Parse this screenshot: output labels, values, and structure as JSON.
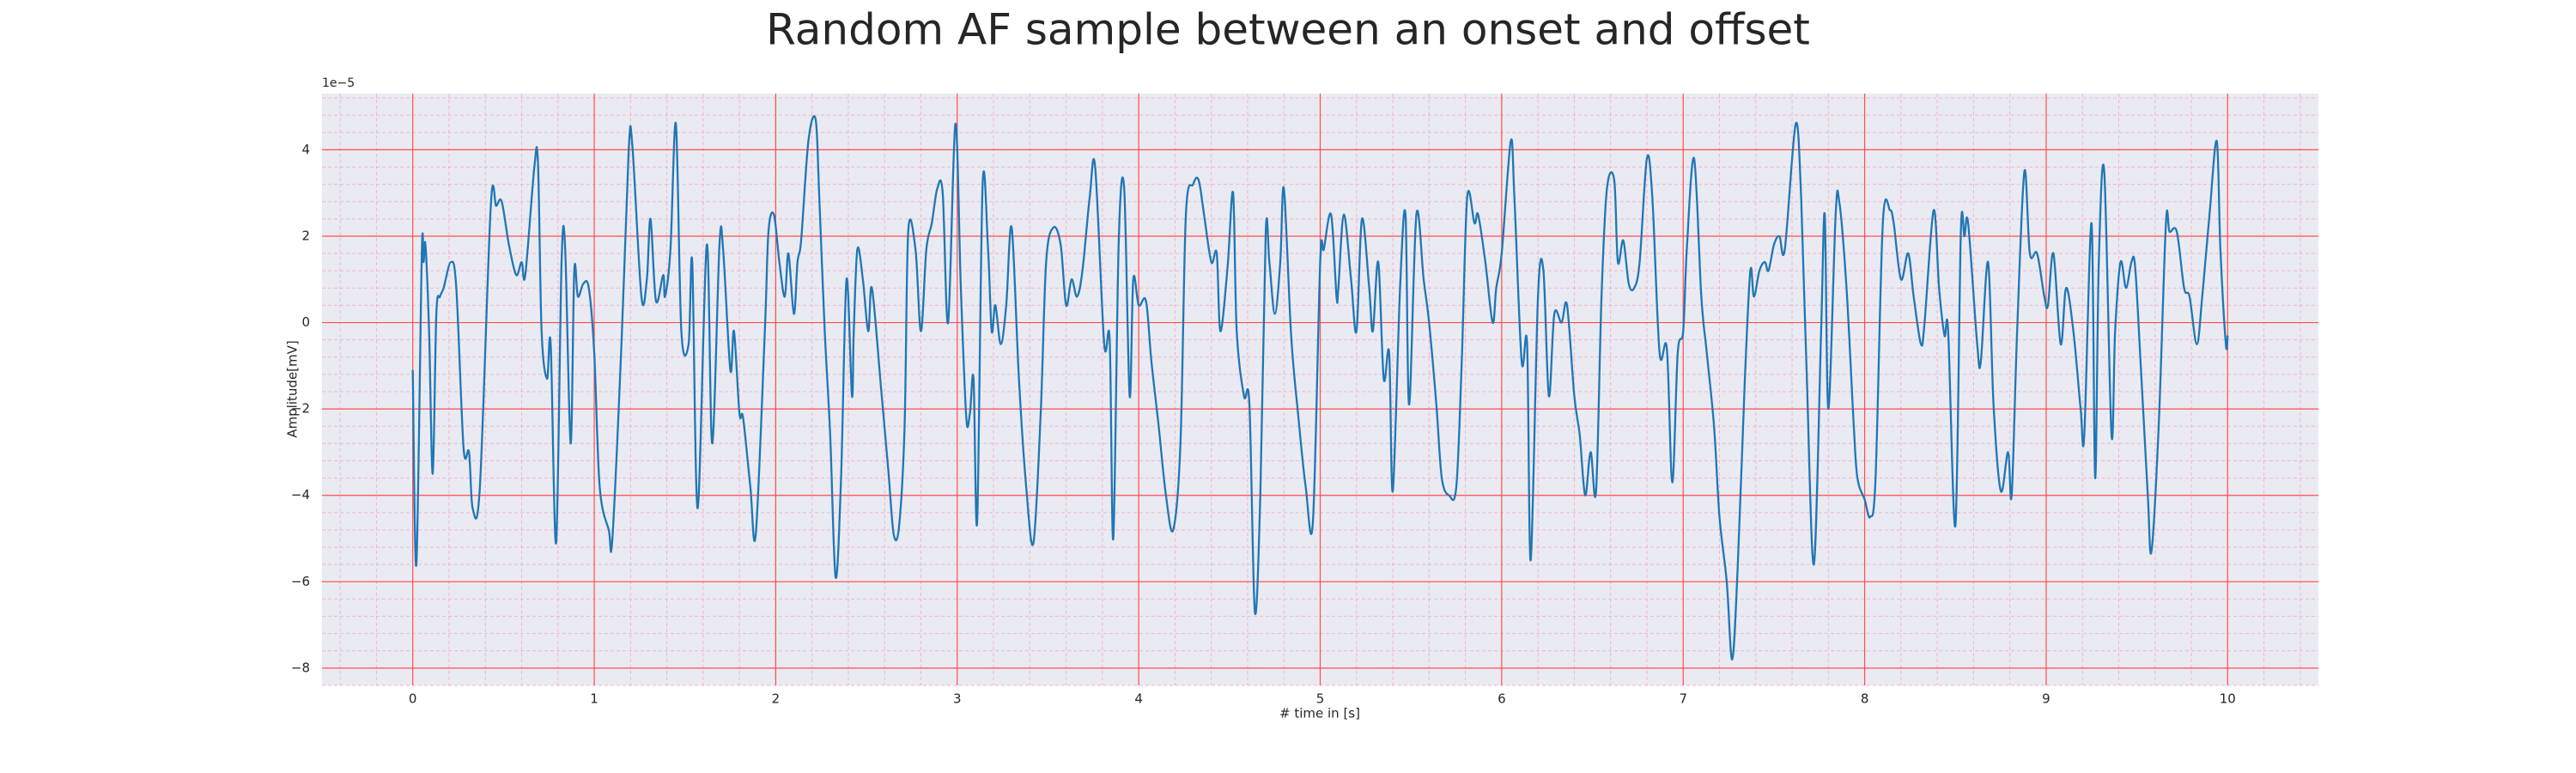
{
  "chart_data": {
    "type": "line",
    "title": "Random AF sample between an onset and offset",
    "xlabel": "# time in [s]",
    "ylabel": "Amplitude[mV]",
    "y_offset_label": "1e−5",
    "xlim": [
      -0.5,
      10.5
    ],
    "ylim": [
      -8.4,
      5.3
    ],
    "xticks": [
      0,
      1,
      2,
      3,
      4,
      5,
      6,
      7,
      8,
      9,
      10
    ],
    "yticks": [
      {
        "value": -8,
        "label": "−8"
      },
      {
        "value": -6,
        "label": "−6"
      },
      {
        "value": -4,
        "label": "−4"
      },
      {
        "value": -2,
        "label": "−2"
      },
      0,
      2,
      4
    ],
    "grid": true,
    "minor_grid": true,
    "grid_color": "#ff4d4d",
    "background": "#eaeaf2",
    "x": [
      0,
      0.02,
      0.05,
      0.06,
      0.07,
      0.09,
      0.11,
      0.13,
      0.15,
      0.17,
      0.21,
      0.24,
      0.28,
      0.31,
      0.33,
      0.37,
      0.43,
      0.46,
      0.49,
      0.53,
      0.57,
      0.6,
      0.62,
      0.67,
      0.69,
      0.71,
      0.74,
      0.76,
      0.79,
      0.82,
      0.84,
      0.87,
      0.89,
      0.91,
      0.94,
      0.97,
      1.0,
      1.03,
      1.08,
      1.1,
      1.15,
      1.19,
      1.21,
      1.26,
      1.29,
      1.31,
      1.34,
      1.38,
      1.39,
      1.42,
      1.45,
      1.48,
      1.52,
      1.54,
      1.57,
      1.62,
      1.65,
      1.69,
      1.71,
      1.75,
      1.77,
      1.8,
      1.82,
      1.86,
      1.89,
      1.94,
      1.96,
      1.99,
      2.02,
      2.05,
      2.07,
      2.1,
      2.12,
      2.14,
      2.18,
      2.22,
      2.24,
      2.27,
      2.3,
      2.33,
      2.36,
      2.39,
      2.42,
      2.43,
      2.45,
      2.48,
      2.51,
      2.53,
      2.58,
      2.62,
      2.65,
      2.68,
      2.71,
      2.73,
      2.77,
      2.8,
      2.83,
      2.86,
      2.89,
      2.92,
      2.95,
      2.99,
      3.02,
      3.05,
      3.07,
      3.09,
      3.11,
      3.14,
      3.17,
      3.19,
      3.21,
      3.24,
      3.27,
      3.3,
      3.34,
      3.38,
      3.42,
      3.46,
      3.49,
      3.53,
      3.57,
      3.6,
      3.63,
      3.66,
      3.69,
      3.73,
      3.76,
      3.81,
      3.84,
      3.86,
      3.89,
      3.92,
      3.95,
      3.97,
      4.0,
      4.04,
      4.07,
      4.11,
      4.15,
      4.19,
      4.23,
      4.26,
      4.3,
      4.33,
      4.36,
      4.4,
      4.43,
      4.45,
      4.49,
      4.52,
      4.54,
      4.58,
      4.61,
      4.64,
      4.67,
      4.7,
      4.72,
      4.75,
      4.78,
      4.8,
      4.84,
      4.88,
      4.92,
      4.96,
      5.0,
      5.02,
      5.06,
      5.09,
      5.1,
      5.13,
      5.17,
      5.2,
      5.23,
      5.27,
      5.29,
      5.32,
      5.35,
      5.38,
      5.4,
      5.44,
      5.47,
      5.49,
      5.53,
      5.57,
      5.6,
      5.64,
      5.67,
      5.71,
      5.75,
      5.78,
      5.81,
      5.85,
      5.87,
      5.91,
      5.95,
      5.97,
      6.0,
      6.05,
      6.07,
      6.11,
      6.14,
      6.16,
      6.2,
      6.23,
      6.26,
      6.29,
      6.33,
      6.36,
      6.4,
      6.43,
      6.46,
      6.49,
      6.52,
      6.55,
      6.58,
      6.62,
      6.64,
      6.67,
      6.7,
      6.73,
      6.76,
      6.8,
      6.83,
      6.87,
      6.91,
      6.94,
      6.97,
      7.0,
      7.02,
      7.06,
      7.1,
      7.13,
      7.17,
      7.2,
      7.24,
      7.27,
      7.3,
      7.34,
      7.37,
      7.39,
      7.42,
      7.45,
      7.47,
      7.5,
      7.53,
      7.56,
      7.62,
      7.65,
      7.68,
      7.72,
      7.76,
      7.78,
      7.8,
      7.84,
      7.86,
      7.9,
      7.94,
      7.96,
      8.0,
      8.03,
      8.06,
      8.1,
      8.14,
      8.16,
      8.2,
      8.24,
      8.27,
      8.31,
      8.33,
      8.38,
      8.41,
      8.44,
      8.46,
      8.5,
      8.53,
      8.55,
      8.57,
      8.62,
      8.64,
      8.68,
      8.71,
      8.75,
      8.79,
      8.81,
      8.84,
      8.88,
      8.91,
      8.95,
      8.99,
      9.01,
      9.04,
      9.08,
      9.11,
      9.15,
      9.19,
      9.21,
      9.25,
      9.27,
      9.29,
      9.32,
      9.36,
      9.38,
      9.41,
      9.44,
      9.47,
      9.49,
      9.52,
      9.56,
      9.58,
      9.62,
      9.66,
      9.68,
      9.72,
      9.76,
      9.79,
      9.83,
      9.86,
      9.9,
      9.94,
      9.96,
      9.99,
      10.0
    ],
    "series": [
      {
        "color": "#1f77b4",
        "values": [
          -1.1,
          -5.6,
          1.6,
          1.4,
          1.8,
          -0.2,
          -3.5,
          0.2,
          0.6,
          0.8,
          1.4,
          0.8,
          -2.9,
          -3.0,
          -4.3,
          -3.8,
          2.7,
          2.7,
          2.8,
          1.8,
          1.1,
          1.4,
          1.1,
          3.6,
          3.7,
          -0.2,
          -1.3,
          -0.5,
          -5.1,
          1.4,
          1.7,
          -2.8,
          1.2,
          0.6,
          0.9,
          0.8,
          -0.7,
          -3.8,
          -4.8,
          -5.0,
          -0.5,
          4.0,
          4.1,
          0.6,
          1.0,
          2.4,
          0.5,
          1.1,
          0.6,
          1.7,
          4.6,
          -0.2,
          -0.5,
          1.4,
          -4.3,
          1.8,
          -2.8,
          1.8,
          1.7,
          -1.1,
          -0.2,
          -2.1,
          -2.2,
          -3.8,
          -4.9,
          -0.2,
          2.1,
          2.5,
          1.4,
          0.6,
          1.6,
          0.2,
          1.4,
          1.9,
          4.2,
          4.7,
          2.9,
          -0.2,
          -2.6,
          -5.9,
          -3.6,
          1.0,
          -1.7,
          -0.2,
          1.7,
          1.0,
          -0.2,
          0.8,
          -1.5,
          -3.4,
          -4.9,
          -4.7,
          -2.4,
          2.1,
          1.7,
          -0.2,
          1.7,
          2.3,
          3.1,
          3.0,
          0.0,
          4.6,
          0.8,
          -2.2,
          -2.1,
          -1.3,
          -4.6,
          3.2,
          1.7,
          -0.2,
          0.4,
          -0.5,
          0.4,
          2.2,
          -1.3,
          -3.8,
          -5.1,
          -2.1,
          1.4,
          2.2,
          1.8,
          0.4,
          1.0,
          0.6,
          1.2,
          2.9,
          3.6,
          -0.5,
          -0.4,
          -5.0,
          1.9,
          3.1,
          -1.7,
          1.0,
          0.4,
          0.5,
          -0.9,
          -2.4,
          -4.0,
          -4.8,
          -2.8,
          2.5,
          3.2,
          3.3,
          2.5,
          1.4,
          1.6,
          -0.2,
          1.3,
          3.0,
          -0.2,
          -1.7,
          -1.9,
          -6.7,
          -4.0,
          2.1,
          1.4,
          0.2,
          1.4,
          3.1,
          -0.3,
          -2.2,
          -3.8,
          -4.6,
          1.4,
          1.7,
          2.5,
          0.6,
          0.8,
          2.5,
          1.0,
          -0.2,
          2.4,
          0.8,
          -0.2,
          1.4,
          -1.3,
          -0.7,
          -3.9,
          0.8,
          2.5,
          -1.9,
          2.5,
          1.0,
          0.0,
          -1.9,
          -3.6,
          -4.0,
          -3.8,
          -0.9,
          2.9,
          2.3,
          2.5,
          1.4,
          0.0,
          0.8,
          1.6,
          4.2,
          2.9,
          -0.9,
          -0.5,
          -5.5,
          0.6,
          1.2,
          -1.7,
          0.2,
          0.0,
          0.4,
          -1.7,
          -2.6,
          -4.0,
          -3.0,
          -3.9,
          0.6,
          3.1,
          3.3,
          1.4,
          1.9,
          0.9,
          0.8,
          1.4,
          3.8,
          2.9,
          -0.7,
          -0.6,
          -3.7,
          -0.7,
          -0.2,
          1.7,
          3.8,
          0.6,
          -0.7,
          -2.4,
          -4.5,
          -6.0,
          -7.8,
          -5.7,
          -1.3,
          1.2,
          0.6,
          1.2,
          1.4,
          1.2,
          1.8,
          2.0,
          1.7,
          4.6,
          2.9,
          -1.1,
          -5.6,
          -0.2,
          2.5,
          -2.0,
          2.5,
          2.8,
          0.8,
          -2.4,
          -3.6,
          -4.1,
          -4.5,
          -3.6,
          2.3,
          2.6,
          2.3,
          1.0,
          1.6,
          0.6,
          -0.5,
          0.0,
          2.6,
          0.8,
          -0.3,
          -0.2,
          -4.7,
          2.1,
          2.0,
          2.3,
          -0.5,
          -0.9,
          1.4,
          -1.9,
          -3.9,
          -3.0,
          -4.0,
          -0.2,
          3.5,
          1.6,
          1.6,
          0.6,
          0.4,
          1.6,
          -0.5,
          0.8,
          -0.2,
          -2.0,
          -2.6,
          2.3,
          -3.6,
          1.4,
          3.5,
          -2.6,
          -0.2,
          1.4,
          0.8,
          1.4,
          1.3,
          -0.9,
          -4.0,
          -5.3,
          -2.4,
          2.3,
          2.1,
          2.1,
          0.8,
          0.6,
          -0.5,
          0.6,
          2.5,
          4.2,
          1.7,
          -0.5,
          -0.3
        ]
      }
    ]
  }
}
